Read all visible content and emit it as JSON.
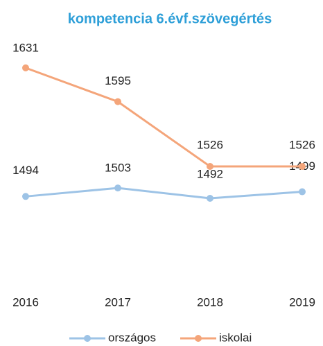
{
  "chart_data": {
    "type": "line",
    "title": "kompetencia 6.évf.szövegértés",
    "categories": [
      "2016",
      "2017",
      "2018",
      "2019"
    ],
    "series": [
      {
        "name": "országos",
        "color": "#9dc3e6",
        "values": [
          1494,
          1503,
          1492,
          1499
        ]
      },
      {
        "name": "iskolai",
        "color": "#f4a57a",
        "values": [
          1631,
          1595,
          1526,
          1526
        ]
      }
    ],
    "ylim": [
      1393,
      1659
    ],
    "legend": "bottom"
  }
}
